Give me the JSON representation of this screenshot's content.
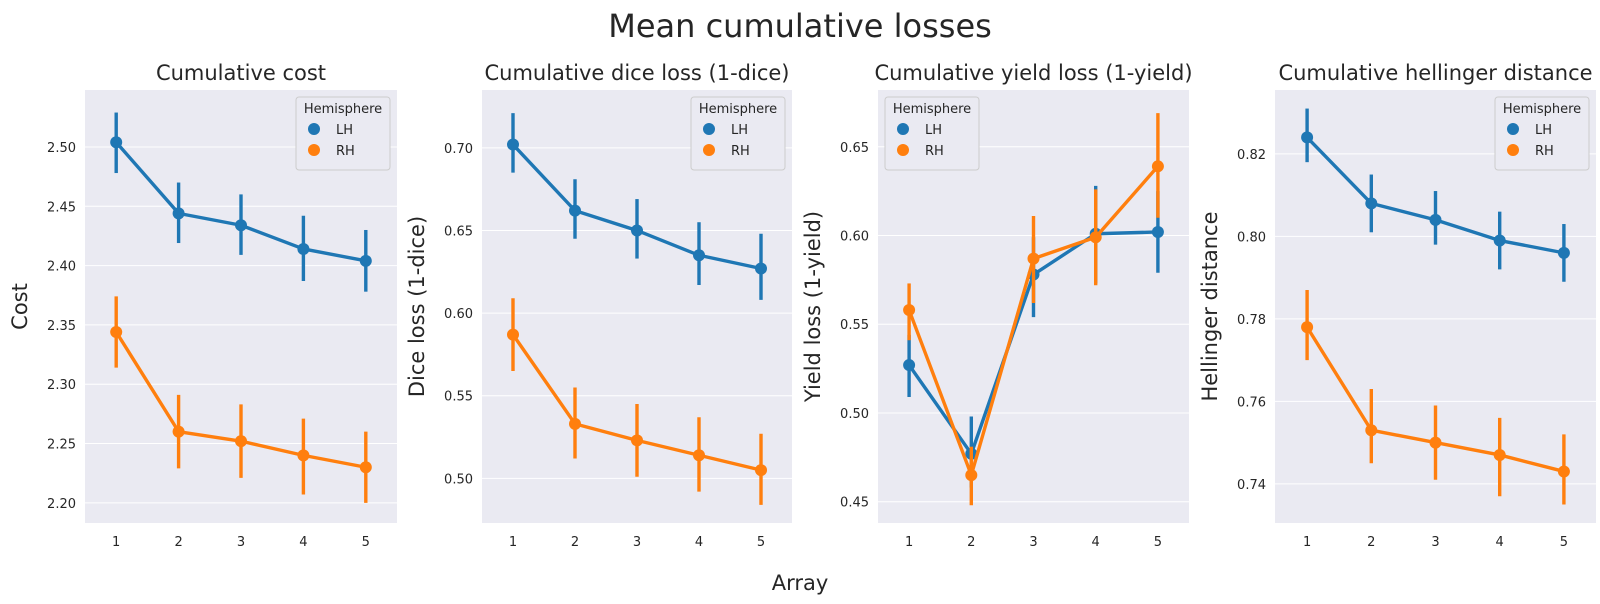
{
  "figure": {
    "title": "Mean cumulative losses",
    "xlabel": "Array"
  },
  "colors": {
    "LH": "#1f77b4",
    "RH": "#ff7f0e",
    "panel_bg": "#eaeaf2",
    "grid": "#ffffff",
    "text": "#262626"
  },
  "chart_data": [
    {
      "type": "line",
      "title": "Cumulative cost",
      "ylabel": "Cost",
      "x": [
        1,
        2,
        3,
        4,
        5
      ],
      "ylim": [
        2.183,
        2.548
      ],
      "yticks": [
        2.2,
        2.25,
        2.3,
        2.35,
        2.4,
        2.45,
        2.5
      ],
      "ytick_labels": [
        "2.20",
        "2.25",
        "2.30",
        "2.35",
        "2.40",
        "2.45",
        "2.50"
      ],
      "legend": {
        "title": "Hemisphere",
        "placement": "top-right"
      },
      "series": [
        {
          "name": "LH",
          "values": [
            2.504,
            2.444,
            2.434,
            2.414,
            2.404
          ],
          "ci_low": [
            2.478,
            2.419,
            2.409,
            2.387,
            2.378
          ],
          "ci_high": [
            2.529,
            2.47,
            2.46,
            2.442,
            2.43
          ]
        },
        {
          "name": "RH",
          "values": [
            2.344,
            2.26,
            2.252,
            2.24,
            2.23
          ],
          "ci_low": [
            2.314,
            2.229,
            2.221,
            2.207,
            2.2
          ],
          "ci_high": [
            2.374,
            2.291,
            2.283,
            2.271,
            2.26
          ]
        }
      ]
    },
    {
      "type": "line",
      "title": "Cumulative dice loss (1-dice)",
      "ylabel": "Dice loss (1-dice)",
      "x": [
        1,
        2,
        3,
        4,
        5
      ],
      "ylim": [
        0.473,
        0.735
      ],
      "yticks": [
        0.5,
        0.55,
        0.6,
        0.65,
        0.7
      ],
      "ytick_labels": [
        "0.50",
        "0.55",
        "0.60",
        "0.65",
        "0.70"
      ],
      "legend": {
        "title": "Hemisphere",
        "placement": "top-right"
      },
      "series": [
        {
          "name": "LH",
          "values": [
            0.702,
            0.662,
            0.65,
            0.635,
            0.627
          ],
          "ci_low": [
            0.685,
            0.645,
            0.633,
            0.617,
            0.608
          ],
          "ci_high": [
            0.721,
            0.681,
            0.669,
            0.655,
            0.648
          ]
        },
        {
          "name": "RH",
          "values": [
            0.587,
            0.533,
            0.523,
            0.514,
            0.505
          ],
          "ci_low": [
            0.565,
            0.512,
            0.501,
            0.492,
            0.484
          ],
          "ci_high": [
            0.609,
            0.555,
            0.545,
            0.537,
            0.527
          ]
        }
      ]
    },
    {
      "type": "line",
      "title": "Cumulative yield loss (1-yield)",
      "ylabel": "Yield loss (1-yield)",
      "x": [
        1,
        2,
        3,
        4,
        5
      ],
      "ylim": [
        0.438,
        0.682
      ],
      "yticks": [
        0.45,
        0.5,
        0.55,
        0.6,
        0.65
      ],
      "ytick_labels": [
        "0.45",
        "0.50",
        "0.55",
        "0.60",
        "0.65"
      ],
      "legend": {
        "title": "Hemisphere",
        "placement": "top-left"
      },
      "series": [
        {
          "name": "LH",
          "values": [
            0.527,
            0.477,
            0.578,
            0.601,
            0.602
          ],
          "ci_low": [
            0.509,
            0.458,
            0.554,
            0.573,
            0.579
          ],
          "ci_high": [
            0.544,
            0.498,
            0.599,
            0.628,
            0.625
          ]
        },
        {
          "name": "RH",
          "values": [
            0.558,
            0.465,
            0.587,
            0.599,
            0.639
          ],
          "ci_low": [
            0.541,
            0.448,
            0.562,
            0.572,
            0.61
          ],
          "ci_high": [
            0.573,
            0.481,
            0.611,
            0.626,
            0.669
          ]
        }
      ]
    },
    {
      "type": "line",
      "title": "Cumulative hellinger distance",
      "ylabel": "Hellinger distance",
      "x": [
        1,
        2,
        3,
        4,
        5
      ],
      "ylim": [
        0.7305,
        0.8355
      ],
      "yticks": [
        0.74,
        0.76,
        0.78,
        0.8,
        0.82
      ],
      "ytick_labels": [
        "0.74",
        "0.76",
        "0.78",
        "0.80",
        "0.82"
      ],
      "legend": {
        "title": "Hemisphere",
        "placement": "top-right"
      },
      "series": [
        {
          "name": "LH",
          "values": [
            0.824,
            0.808,
            0.804,
            0.799,
            0.796
          ],
          "ci_low": [
            0.818,
            0.801,
            0.798,
            0.792,
            0.789
          ],
          "ci_high": [
            0.831,
            0.815,
            0.811,
            0.806,
            0.803
          ]
        },
        {
          "name": "RH",
          "values": [
            0.778,
            0.753,
            0.75,
            0.747,
            0.743
          ],
          "ci_low": [
            0.77,
            0.745,
            0.741,
            0.737,
            0.735
          ],
          "ci_high": [
            0.787,
            0.763,
            0.759,
            0.756,
            0.752
          ]
        }
      ]
    }
  ]
}
